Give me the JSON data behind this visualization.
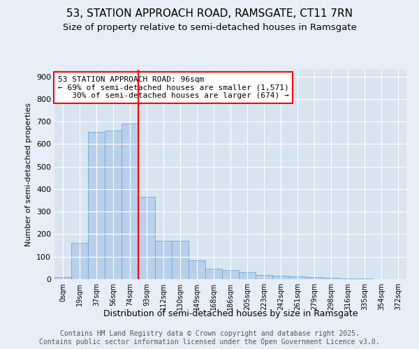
{
  "title1": "53, STATION APPROACH ROAD, RAMSGATE, CT11 7RN",
  "title2": "Size of property relative to semi-detached houses in Ramsgate",
  "xlabel": "Distribution of semi-detached houses by size in Ramsgate",
  "ylabel": "Number of semi-detached properties",
  "categories": [
    "0sqm",
    "19sqm",
    "37sqm",
    "56sqm",
    "74sqm",
    "93sqm",
    "112sqm",
    "130sqm",
    "149sqm",
    "168sqm",
    "186sqm",
    "205sqm",
    "223sqm",
    "242sqm",
    "261sqm",
    "279sqm",
    "298sqm",
    "316sqm",
    "335sqm",
    "354sqm",
    "372sqm"
  ],
  "values": [
    8,
    160,
    655,
    660,
    690,
    365,
    170,
    170,
    85,
    48,
    40,
    32,
    18,
    14,
    12,
    10,
    5,
    3,
    2,
    1,
    0
  ],
  "bar_color": "#b8d0ea",
  "bar_edge_color": "#6aaad4",
  "vline_x": 4.5,
  "vline_color": "red",
  "annotation_text": "53 STATION APPROACH ROAD: 96sqm\n← 69% of semi-detached houses are smaller (1,571)\n   30% of semi-detached houses are larger (674) →",
  "annotation_box_color": "white",
  "annotation_box_edge": "red",
  "background_color": "#e8eef8",
  "plot_bg_color": "#d8e4f0",
  "footer": "Contains HM Land Registry data © Crown copyright and database right 2025.\nContains public sector information licensed under the Open Government Licence v3.0.",
  "ylim": [
    0,
    930
  ],
  "yticks": [
    0,
    100,
    200,
    300,
    400,
    500,
    600,
    700,
    800,
    900
  ],
  "title_fontsize": 11,
  "subtitle_fontsize": 9.5,
  "footer_fontsize": 7,
  "annot_fontsize": 8
}
